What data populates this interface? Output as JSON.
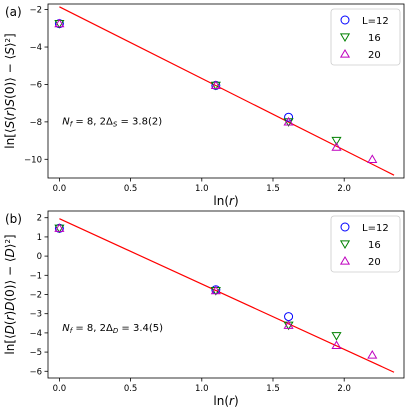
{
  "chart_data": [
    {
      "type": "scatter",
      "panel_label": "(a)",
      "xlabel": "ln(r)",
      "ylabel": "ln[⟨S(r)S(0)⟩ − ⟨S⟩²]",
      "xlim": [
        -0.08,
        2.42
      ],
      "ylim": [
        -11.0,
        -1.7
      ],
      "xticks": [
        0.0,
        0.5,
        1.0,
        1.5,
        2.0
      ],
      "xtick_labels": [
        "0.0",
        "0.5",
        "1.0",
        "1.5",
        "2.0"
      ],
      "yticks": [
        -10,
        -8,
        -6,
        -4,
        -2
      ],
      "ytick_labels": [
        "−10",
        "−8",
        "−6",
        "−4",
        "−2"
      ],
      "annotation": "N_f = 8,  2Δ_S = 3.8(2)",
      "legend_position": "upper right",
      "series": [
        {
          "name": "L=12",
          "marker": "circle",
          "color": "#0000ff",
          "x": [
            0.0,
            1.0986,
            1.6094
          ],
          "y": [
            -2.75,
            -6.05,
            -7.75
          ]
        },
        {
          "name": "16",
          "marker": "triangle-down",
          "color": "#008000",
          "x": [
            0.0,
            1.0986,
            1.6094,
            1.9459
          ],
          "y": [
            -2.75,
            -6.05,
            -8.0,
            -9.0
          ]
        },
        {
          "name": "20",
          "marker": "triangle-up",
          "color": "#bf00bf",
          "x": [
            0.0,
            1.0986,
            1.6094,
            1.9459,
            2.1972
          ],
          "y": [
            -2.75,
            -6.05,
            -8.0,
            -9.35,
            -10.0
          ]
        }
      ],
      "fit_line": {
        "color": "#ff0000",
        "x": [
          0.0,
          2.35
        ],
        "y": [
          -1.85,
          -10.85
        ]
      }
    },
    {
      "type": "scatter",
      "panel_label": "(b)",
      "xlabel": "ln(r)",
      "ylabel": "ln[⟨D(r)D(0)⟩ − ⟨D⟩²]",
      "xlim": [
        -0.08,
        2.42
      ],
      "ylim": [
        -6.35,
        2.35
      ],
      "xticks": [
        0.0,
        0.5,
        1.0,
        1.5,
        2.0
      ],
      "xtick_labels": [
        "0.0",
        "0.5",
        "1.0",
        "1.5",
        "2.0"
      ],
      "yticks": [
        -6,
        -5,
        -4,
        -3,
        -2,
        -1,
        0,
        1,
        2
      ],
      "ytick_labels": [
        "−6",
        "−5",
        "−4",
        "−3",
        "−2",
        "−1",
        "0",
        "1",
        "2"
      ],
      "annotation": "N_f = 8,  2Δ_D = 3.4(5)",
      "legend_position": "upper right",
      "series": [
        {
          "name": "L=12",
          "marker": "circle",
          "color": "#0000ff",
          "x": [
            0.0,
            1.0986,
            1.6094
          ],
          "y": [
            1.45,
            -1.75,
            -3.15
          ]
        },
        {
          "name": "16",
          "marker": "triangle-down",
          "color": "#008000",
          "x": [
            0.0,
            1.0986,
            1.6094,
            1.9459
          ],
          "y": [
            1.45,
            -1.8,
            -3.6,
            -4.15
          ]
        },
        {
          "name": "20",
          "marker": "triangle-up",
          "color": "#bf00bf",
          "x": [
            0.0,
            1.0986,
            1.6094,
            1.9459,
            2.1972
          ],
          "y": [
            1.45,
            -1.8,
            -3.6,
            -4.65,
            -5.15
          ]
        }
      ],
      "fit_line": {
        "color": "#ff0000",
        "x": [
          0.0,
          2.35
        ],
        "y": [
          1.95,
          -6.05
        ]
      }
    }
  ]
}
